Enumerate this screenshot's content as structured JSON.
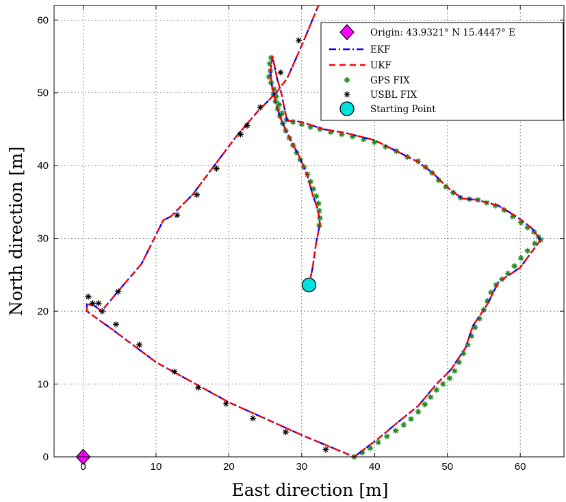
{
  "chart_data": {
    "type": "line",
    "xlabel": "East direction [m]",
    "ylabel": "North direction [m]",
    "xlim": [
      -4,
      66
    ],
    "ylim": [
      0,
      62
    ],
    "xticks": [
      0,
      10,
      20,
      30,
      40,
      50,
      60
    ],
    "yticks": [
      0,
      10,
      20,
      30,
      40,
      50,
      60
    ],
    "grid": true,
    "legend_position": "top-right",
    "colors": {
      "ekf": "#0000ff",
      "ukf": "#ff0000",
      "gps": "#228b22",
      "usbl": "#000000",
      "origin": "#ff00ff",
      "start": "#00e0e0"
    },
    "legend": [
      {
        "key": "origin",
        "label": "Origin: 43.9321° N 15.4447° E",
        "icon": "diamond-icon"
      },
      {
        "key": "ekf",
        "label": "EKF",
        "icon": "dashdot-line-icon"
      },
      {
        "key": "ukf",
        "label": "UKF",
        "icon": "dashed-line-icon"
      },
      {
        "key": "gps",
        "label": "GPS FIX",
        "icon": "asterisk-icon"
      },
      {
        "key": "usbl",
        "label": "USBL FIX",
        "icon": "asterisk-icon"
      },
      {
        "key": "start",
        "label": "Starting Point",
        "icon": "circle-icon"
      }
    ],
    "series": [
      {
        "name": "EKF",
        "points": [
          [
            31,
            23.6
          ],
          [
            31.5,
            26
          ],
          [
            32,
            29.5
          ],
          [
            32.5,
            32
          ],
          [
            32.2,
            34
          ],
          [
            31.5,
            36
          ],
          [
            30.8,
            38.5
          ],
          [
            29.8,
            41
          ],
          [
            28.5,
            43.5
          ],
          [
            27.3,
            46
          ],
          [
            26.6,
            48
          ],
          [
            25.9,
            51
          ],
          [
            25.7,
            53
          ],
          [
            26,
            55
          ],
          [
            26.6,
            52
          ],
          [
            27.2,
            50
          ],
          [
            27.6,
            48
          ],
          [
            28,
            46.2
          ],
          [
            30,
            46
          ],
          [
            33,
            45
          ],
          [
            36,
            44.5
          ],
          [
            40,
            43.5
          ],
          [
            43,
            42
          ],
          [
            46,
            40.5
          ],
          [
            48,
            39
          ],
          [
            50,
            37
          ],
          [
            52,
            35.5
          ],
          [
            54,
            35.3
          ],
          [
            57,
            34.5
          ],
          [
            59.5,
            33
          ],
          [
            61.5,
            31.5
          ],
          [
            62.8,
            29.8
          ],
          [
            60,
            26
          ],
          [
            57,
            24
          ],
          [
            55.5,
            21
          ],
          [
            53.5,
            18
          ],
          [
            52.5,
            15
          ],
          [
            50.5,
            12
          ],
          [
            48.5,
            10
          ],
          [
            46,
            7
          ],
          [
            43.5,
            5
          ],
          [
            40.5,
            2.5
          ],
          [
            37.2,
            0
          ],
          [
            30,
            3
          ],
          [
            20,
            7.5
          ],
          [
            10,
            13
          ],
          [
            4,
            17.5
          ],
          [
            0.5,
            20
          ],
          [
            0.5,
            21
          ],
          [
            1.5,
            20.8
          ],
          [
            2.5,
            20
          ],
          [
            5,
            23
          ],
          [
            8,
            26.5
          ],
          [
            11,
            32.5
          ],
          [
            12,
            33
          ],
          [
            15,
            36
          ],
          [
            18,
            40
          ],
          [
            21,
            44
          ],
          [
            24,
            47.5
          ],
          [
            26.5,
            50
          ],
          [
            28,
            52
          ],
          [
            30,
            56.5
          ],
          [
            32.3,
            62
          ]
        ]
      },
      {
        "name": "UKF",
        "points": [
          [
            31,
            23.6
          ],
          [
            31.5,
            26
          ],
          [
            32,
            29.5
          ],
          [
            32.5,
            32
          ],
          [
            32.2,
            34
          ],
          [
            31.5,
            36
          ],
          [
            30.8,
            38.5
          ],
          [
            29.8,
            41
          ],
          [
            28.5,
            43.5
          ],
          [
            27.3,
            46
          ],
          [
            26.6,
            48
          ],
          [
            25.9,
            51
          ],
          [
            25.7,
            53
          ],
          [
            26,
            55
          ],
          [
            26.6,
            52
          ],
          [
            27.2,
            50
          ],
          [
            27.6,
            48
          ],
          [
            28,
            46.2
          ],
          [
            30,
            46
          ],
          [
            33,
            45
          ],
          [
            36,
            44.5
          ],
          [
            40,
            43.5
          ],
          [
            43,
            42
          ],
          [
            46,
            40.5
          ],
          [
            48,
            39
          ],
          [
            50,
            37
          ],
          [
            52,
            35.5
          ],
          [
            54,
            35.3
          ],
          [
            57,
            34.5
          ],
          [
            59.5,
            33
          ],
          [
            61.5,
            31.5
          ],
          [
            62.8,
            29.8
          ],
          [
            60,
            26
          ],
          [
            57,
            24
          ],
          [
            55.5,
            21
          ],
          [
            53.5,
            18
          ],
          [
            52.5,
            15
          ],
          [
            50.5,
            12
          ],
          [
            48.5,
            10
          ],
          [
            46,
            7
          ],
          [
            43.5,
            5
          ],
          [
            40.5,
            2.5
          ],
          [
            37.2,
            0
          ],
          [
            30,
            3
          ],
          [
            20,
            7.5
          ],
          [
            10,
            13
          ],
          [
            4,
            17.5
          ],
          [
            0.5,
            20
          ],
          [
            0.5,
            21
          ],
          [
            1.5,
            20.8
          ],
          [
            2.5,
            20
          ],
          [
            5,
            23
          ],
          [
            8,
            26.5
          ],
          [
            11,
            32.5
          ],
          [
            12,
            33
          ],
          [
            15,
            36
          ],
          [
            18,
            40
          ],
          [
            21,
            44
          ],
          [
            24,
            47.5
          ],
          [
            26.5,
            50
          ],
          [
            28,
            52
          ],
          [
            30,
            56.5
          ],
          [
            32.3,
            62
          ]
        ]
      },
      {
        "name": "GPS FIX",
        "points": [
          [
            25.8,
            54.8
          ],
          [
            25.6,
            54
          ],
          [
            25.7,
            53
          ],
          [
            25.5,
            52.2
          ],
          [
            25.8,
            51.4
          ],
          [
            26.2,
            50.5
          ],
          [
            26.5,
            49.5
          ],
          [
            26.9,
            48.4
          ],
          [
            27.3,
            47.2
          ],
          [
            27.9,
            46.3
          ],
          [
            28.8,
            46
          ],
          [
            30,
            45.7
          ],
          [
            31.2,
            45.3
          ],
          [
            32.5,
            45
          ],
          [
            34,
            44.6
          ],
          [
            35.5,
            44.3
          ],
          [
            37,
            44
          ],
          [
            38.5,
            43.6
          ],
          [
            40,
            43.2
          ],
          [
            41.5,
            42.6
          ],
          [
            43,
            42
          ],
          [
            44.5,
            41.2
          ],
          [
            46,
            40.6
          ],
          [
            47,
            39.8
          ],
          [
            47.9,
            39
          ],
          [
            48.8,
            38
          ],
          [
            49.8,
            37.1
          ],
          [
            50.8,
            36.3
          ],
          [
            51.8,
            35.6
          ],
          [
            53,
            35.4
          ],
          [
            54.2,
            35.3
          ],
          [
            55.4,
            34.9
          ],
          [
            56.6,
            34.5
          ],
          [
            57.8,
            33.9
          ],
          [
            59,
            33
          ],
          [
            60.1,
            32.2
          ],
          [
            61,
            31.5
          ],
          [
            61.9,
            30.9
          ],
          [
            62.5,
            30.2
          ],
          [
            62.8,
            29.8
          ],
          [
            26.1,
            49.8
          ],
          [
            26.4,
            48.8
          ],
          [
            26.7,
            47.8
          ],
          [
            27,
            46.8
          ],
          [
            27.4,
            45.8
          ],
          [
            27.8,
            44.8
          ],
          [
            28.3,
            43.8
          ],
          [
            28.8,
            42.8
          ],
          [
            29.3,
            41.8
          ],
          [
            29.8,
            40.8
          ],
          [
            30.3,
            39.8
          ],
          [
            30.8,
            38.8
          ],
          [
            31.2,
            37.8
          ],
          [
            31.6,
            36.8
          ],
          [
            32,
            35.8
          ],
          [
            32.3,
            34.8
          ],
          [
            32.4,
            33.8
          ],
          [
            32.5,
            32.8
          ],
          [
            32.4,
            31.8
          ],
          [
            37.2,
            0
          ],
          [
            38.3,
            0.6
          ],
          [
            39.4,
            1.2
          ],
          [
            40.5,
            2
          ],
          [
            41.7,
            2.8
          ],
          [
            42.9,
            3.6
          ],
          [
            44,
            4.4
          ],
          [
            45,
            5.2
          ],
          [
            46,
            6.2
          ],
          [
            46.9,
            7.2
          ],
          [
            47.7,
            8.2
          ],
          [
            48.5,
            9.2
          ],
          [
            49.4,
            10
          ],
          [
            50.3,
            10.8
          ],
          [
            51,
            11.8
          ],
          [
            51.6,
            13
          ],
          [
            52.2,
            14.2
          ],
          [
            52.8,
            15.4
          ],
          [
            53.3,
            16.6
          ],
          [
            53.8,
            17.8
          ],
          [
            54.4,
            19
          ],
          [
            55,
            20.2
          ],
          [
            55.5,
            21.4
          ],
          [
            56,
            22.6
          ],
          [
            56.7,
            23.6
          ],
          [
            57.5,
            24.4
          ],
          [
            58.3,
            25.2
          ],
          [
            59.2,
            26.2
          ],
          [
            60.1,
            27.3
          ],
          [
            61,
            28.3
          ],
          [
            62,
            29.3
          ]
        ]
      },
      {
        "name": "USBL FIX",
        "points": [
          [
            33.3,
            1
          ],
          [
            27.8,
            3.4
          ],
          [
            23.3,
            5.3
          ],
          [
            19.6,
            7.3
          ],
          [
            15.8,
            9.5
          ],
          [
            12.5,
            11.7
          ],
          [
            7.7,
            15.4
          ],
          [
            4.5,
            18.2
          ],
          [
            0.7,
            22
          ],
          [
            1.3,
            21.1
          ],
          [
            2.1,
            21.1
          ],
          [
            2.6,
            20
          ],
          [
            4.8,
            22.7
          ],
          [
            12.9,
            33.2
          ],
          [
            15.6,
            36
          ],
          [
            18.3,
            39.6
          ],
          [
            21.6,
            44.3
          ],
          [
            22.5,
            45.5
          ],
          [
            24.3,
            48
          ],
          [
            27.1,
            52.8
          ],
          [
            29.6,
            57.2
          ]
        ]
      },
      {
        "name": "Starting Point",
        "points": [
          [
            31,
            23.6
          ]
        ]
      },
      {
        "name": "Origin",
        "points": [
          [
            0,
            0
          ]
        ]
      }
    ]
  }
}
